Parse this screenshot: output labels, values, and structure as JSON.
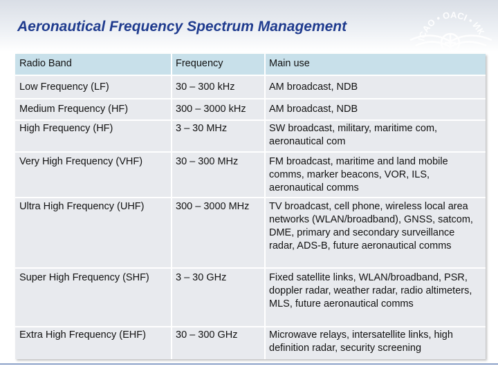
{
  "slide": {
    "title": "Aeronautical Frequency Spectrum Management",
    "logo_text": "ICAO • OACI • ИКАО"
  },
  "table": {
    "headers": {
      "band": "Radio Band",
      "frequency": "Frequency",
      "use": "Main use"
    },
    "rows": [
      {
        "band": "Low Frequency (LF)",
        "frequency": "30 – 300 kHz",
        "use": "AM broadcast, NDB"
      },
      {
        "band": "Medium Frequency (HF)",
        "frequency": "300 – 3000 kHz",
        "use": "AM broadcast, NDB"
      },
      {
        "band": "High Frequency (HF)",
        "frequency": "3 – 30 MHz",
        "use": "SW broadcast, military, maritime com, aeronautical com"
      },
      {
        "band": "Very High Frequency (VHF)",
        "frequency": "30 – 300 MHz",
        "use": "FM broadcast, maritime and land mobile comms, marker beacons, VOR, ILS, aeronautical comms"
      },
      {
        "band": "Ultra High Frequency (UHF)",
        "frequency": "300 – 3000 MHz",
        "use": "TV broadcast, cell phone, wireless local area networks (WLAN/broadband), GNSS, satcom, DME, primary and secondary surveillance radar, ADS-B, future aeronautical comms"
      },
      {
        "band": "Super High Frequency (SHF)",
        "frequency": "3 – 30 GHz",
        "use": "Fixed satellite links, WLAN/broadband, PSR, doppler radar, weather radar, radio altimeters, MLS, future aeronautical comms"
      },
      {
        "band": "Extra High Frequency (EHF)",
        "frequency": "30 – 300 GHz",
        "use": "Microwave relays, intersatellite links, high definition radar, security screening"
      }
    ]
  }
}
